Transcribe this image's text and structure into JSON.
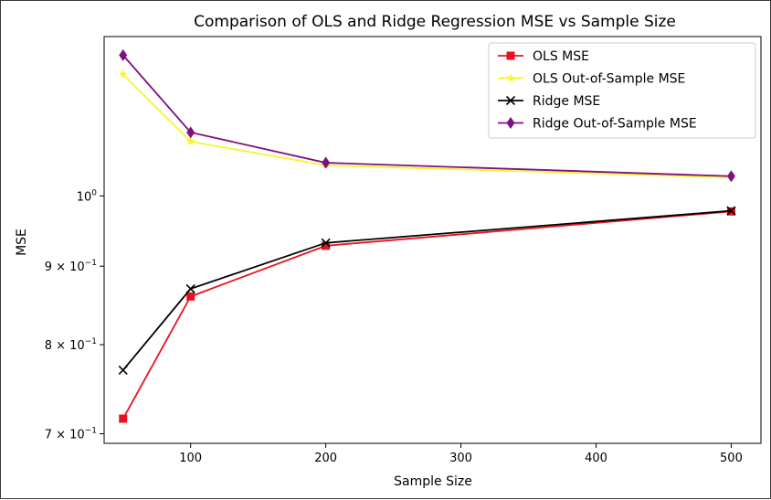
{
  "chart_data": {
    "type": "line",
    "title": "Comparison of OLS and Ridge Regression MSE vs Sample Size",
    "xlabel": "Sample Size",
    "ylabel": "MSE",
    "yscale": "log",
    "xlim": [
      36,
      522
    ],
    "ylim": [
      0.69,
      1.27
    ],
    "x_ticks": [
      100,
      200,
      300,
      400,
      500
    ],
    "y_ticks": [
      {
        "value": 0.7,
        "base": "7 × 10",
        "exp": "−1"
      },
      {
        "value": 0.8,
        "base": "8 × 10",
        "exp": "−1"
      },
      {
        "value": 0.9,
        "base": "9 × 10",
        "exp": "−1"
      },
      {
        "value": 1.0,
        "base": "10",
        "exp": "0"
      }
    ],
    "legend_position": "top-right",
    "grid": false,
    "x": [
      50,
      100,
      200,
      500
    ],
    "series": [
      {
        "name": "OLS MSE",
        "color": "#e8121f",
        "marker": "square",
        "values": [
          0.716,
          0.86,
          0.928,
          0.977
        ]
      },
      {
        "name": "OLS Out-of-Sample MSE",
        "color": "#f5f52a",
        "marker": "star",
        "values": [
          1.2,
          1.085,
          1.047,
          1.028
        ]
      },
      {
        "name": "Ridge MSE",
        "color": "#000000",
        "marker": "x",
        "values": [
          0.77,
          0.87,
          0.932,
          0.978
        ]
      },
      {
        "name": "Ridge Out-of-Sample MSE",
        "color": "#800f80",
        "marker": "diamond",
        "values": [
          1.235,
          1.1,
          1.051,
          1.03
        ]
      }
    ]
  }
}
